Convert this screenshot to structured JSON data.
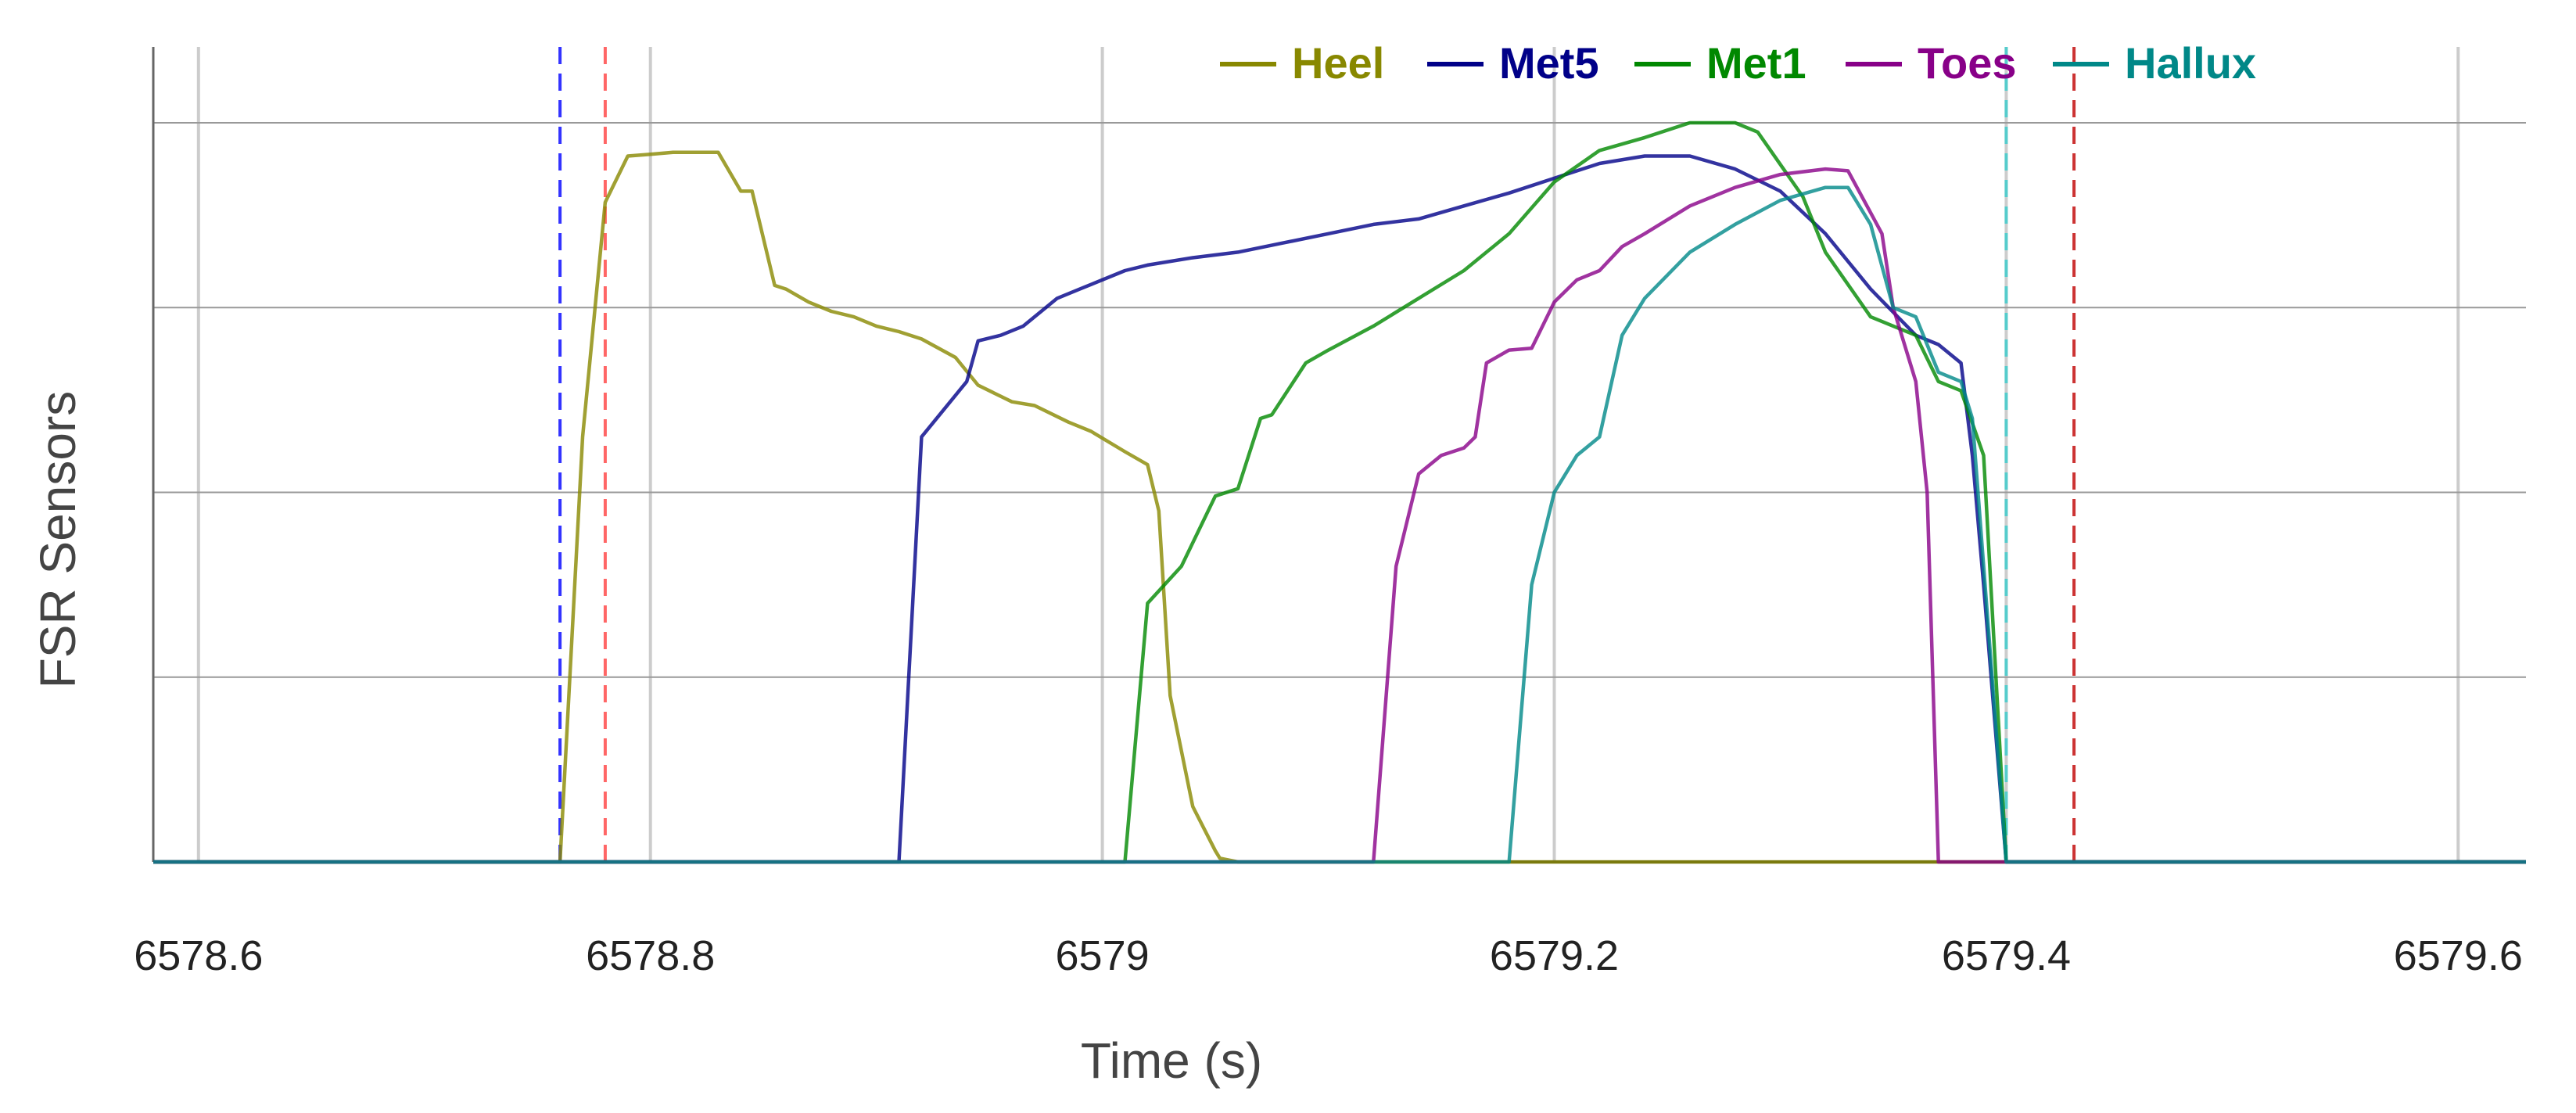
{
  "chart_data": {
    "type": "line",
    "title": "",
    "xlabel": "Time (s)",
    "ylabel": "FSR Sensors",
    "xlim": [
      6578.58,
      6579.63
    ],
    "ylim": [
      0,
      4
    ],
    "x_ticks": [
      {
        "value": 6578.6,
        "label": "6578.6"
      },
      {
        "value": 6578.8,
        "label": "6578.8"
      },
      {
        "value": 6579.0,
        "label": "6579"
      },
      {
        "value": 6579.2,
        "label": "6579.2"
      },
      {
        "value": 6579.4,
        "label": "6579.4"
      },
      {
        "value": 6579.6,
        "label": "6579.6"
      }
    ],
    "y_gridlines": [
      1,
      2,
      3,
      4
    ],
    "grid": true,
    "legend_position": "top-right",
    "series": [
      {
        "name": "Heel",
        "color": "#888800",
        "x": [
          6578.58,
          6578.76,
          6578.77,
          6578.78,
          6578.79,
          6578.8,
          6578.81,
          6578.83,
          6578.84,
          6578.845,
          6578.855,
          6578.86,
          6578.87,
          6578.88,
          6578.89,
          6578.9,
          6578.91,
          6578.92,
          6578.935,
          6578.945,
          6578.96,
          6578.97,
          6578.985,
          6578.995,
          6579.01,
          6579.02,
          6579.025,
          6579.03,
          6579.04,
          6579.05,
          6579.052,
          6579.06,
          6579.63
        ],
        "y": [
          0,
          0,
          2.3,
          3.57,
          3.82,
          3.83,
          3.84,
          3.84,
          3.63,
          3.63,
          3.12,
          3.1,
          3.03,
          2.98,
          2.95,
          2.9,
          2.87,
          2.83,
          2.73,
          2.58,
          2.49,
          2.47,
          2.38,
          2.33,
          2.22,
          2.15,
          1.9,
          0.9,
          0.3,
          0.06,
          0.02,
          0,
          0
        ]
      },
      {
        "name": "Met5",
        "color": "#000088",
        "x": [
          6578.58,
          6578.91,
          6578.92,
          6578.93,
          6578.94,
          6578.945,
          6578.955,
          6578.965,
          6578.98,
          6578.99,
          6579.01,
          6579.02,
          6579.04,
          6579.06,
          6579.08,
          6579.1,
          6579.12,
          6579.14,
          6579.16,
          6579.18,
          6579.2,
          6579.22,
          6579.24,
          6579.26,
          6579.28,
          6579.3,
          6579.32,
          6579.34,
          6579.36,
          6579.37,
          6579.38,
          6579.385,
          6579.39,
          6579.4,
          6579.63
        ],
        "y": [
          0,
          0,
          2.3,
          2.45,
          2.6,
          2.82,
          2.85,
          2.9,
          3.05,
          3.1,
          3.2,
          3.23,
          3.27,
          3.3,
          3.35,
          3.4,
          3.45,
          3.48,
          3.55,
          3.62,
          3.7,
          3.78,
          3.82,
          3.82,
          3.75,
          3.63,
          3.4,
          3.1,
          2.85,
          2.8,
          2.7,
          2.2,
          1.5,
          0,
          0
        ]
      },
      {
        "name": "Met1",
        "color": "#008800",
        "x": [
          6578.58,
          6579.01,
          6579.02,
          6579.035,
          6579.05,
          6579.06,
          6579.07,
          6579.075,
          6579.09,
          6579.1,
          6579.12,
          6579.14,
          6579.16,
          6579.18,
          6579.2,
          6579.22,
          6579.24,
          6579.26,
          6579.28,
          6579.29,
          6579.31,
          6579.32,
          6579.34,
          6579.36,
          6579.37,
          6579.38,
          6579.39,
          6579.4,
          6579.63
        ],
        "y": [
          0,
          0,
          1.4,
          1.6,
          1.98,
          2.02,
          2.4,
          2.42,
          2.7,
          2.77,
          2.9,
          3.05,
          3.2,
          3.4,
          3.68,
          3.85,
          3.92,
          4.0,
          4.0,
          3.95,
          3.6,
          3.3,
          2.95,
          2.85,
          2.6,
          2.55,
          2.2,
          0,
          0
        ]
      },
      {
        "name": "Toes",
        "color": "#880088",
        "x": [
          6578.58,
          6579.12,
          6579.13,
          6579.14,
          6579.15,
          6579.16,
          6579.165,
          6579.17,
          6579.18,
          6579.19,
          6579.2,
          6579.21,
          6579.22,
          6579.23,
          6579.24,
          6579.26,
          6579.28,
          6579.3,
          6579.32,
          6579.33,
          6579.345,
          6579.35,
          6579.36,
          6579.365,
          6579.37,
          6579.63
        ],
        "y": [
          0,
          0,
          1.6,
          2.1,
          2.2,
          2.24,
          2.3,
          2.7,
          2.77,
          2.78,
          3.03,
          3.15,
          3.2,
          3.33,
          3.4,
          3.55,
          3.65,
          3.72,
          3.75,
          3.74,
          3.4,
          3.0,
          2.6,
          2.0,
          0,
          0
        ]
      },
      {
        "name": "Hallux",
        "color": "#008888",
        "x": [
          6578.58,
          6579.18,
          6579.19,
          6579.2,
          6579.21,
          6579.22,
          6579.23,
          6579.24,
          6579.26,
          6579.28,
          6579.3,
          6579.32,
          6579.33,
          6579.34,
          6579.35,
          6579.36,
          6579.37,
          6579.38,
          6579.385,
          6579.4,
          6579.63
        ],
        "y": [
          0,
          0,
          1.5,
          2.0,
          2.2,
          2.3,
          2.85,
          3.05,
          3.3,
          3.45,
          3.58,
          3.65,
          3.65,
          3.45,
          3.0,
          2.95,
          2.65,
          2.6,
          2.4,
          0,
          0
        ]
      }
    ],
    "markers": [
      {
        "x": 6578.76,
        "color": "#3333ff",
        "style": "dashed"
      },
      {
        "x": 6578.78,
        "color": "#ff6666",
        "style": "dashed"
      },
      {
        "x": 6579.4,
        "color": "#55cccc",
        "style": "dashed"
      },
      {
        "x": 6579.43,
        "color": "#cc3333",
        "style": "dashed"
      }
    ]
  }
}
